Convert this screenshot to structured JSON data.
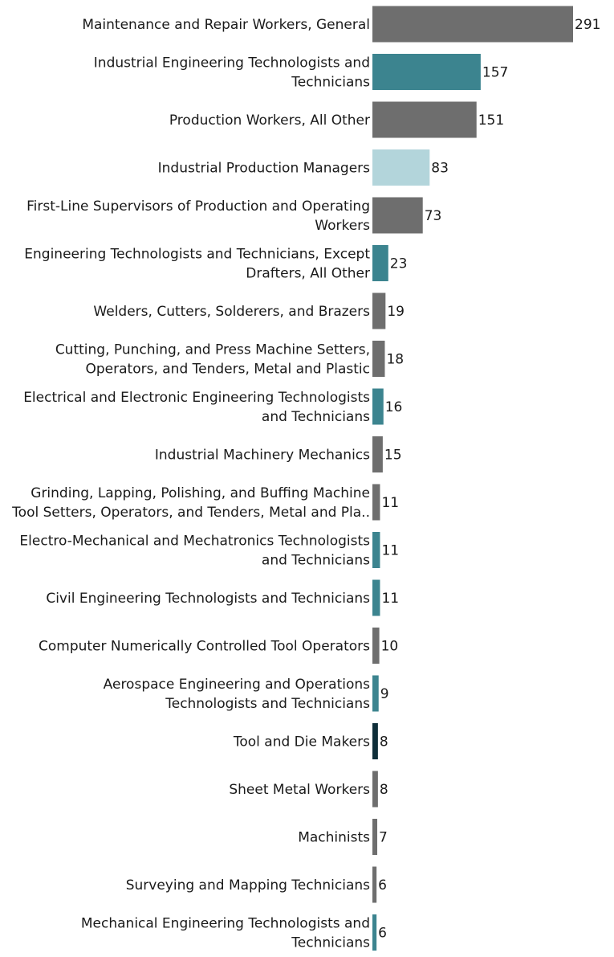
{
  "chart_data": {
    "type": "bar",
    "orientation": "horizontal",
    "title": "",
    "xlabel": "",
    "ylabel": "",
    "grid": false,
    "xlim": [
      0,
      291
    ],
    "categories": [
      [
        "Maintenance and Repair Workers, General"
      ],
      [
        "Industrial Engineering Technologists and",
        "Technicians"
      ],
      [
        "Production Workers, All Other"
      ],
      [
        "Industrial Production Managers"
      ],
      [
        "First-Line Supervisors of Production and Operating",
        "Workers"
      ],
      [
        "Engineering Technologists and Technicians, Except",
        "Drafters, All Other"
      ],
      [
        "Welders, Cutters, Solderers, and Brazers"
      ],
      [
        "Cutting, Punching, and Press Machine Setters,",
        "Operators, and Tenders, Metal and Plastic"
      ],
      [
        "Electrical and Electronic Engineering Technologists",
        "and Technicians"
      ],
      [
        "Industrial Machinery Mechanics"
      ],
      [
        "Grinding, Lapping, Polishing, and Buffing Machine",
        "Tool Setters, Operators, and Tenders, Metal and Pla.."
      ],
      [
        "Electro-Mechanical and Mechatronics Technologists",
        "and Technicians"
      ],
      [
        "Civil Engineering Technologists and Technicians"
      ],
      [
        "Computer Numerically Controlled Tool Operators"
      ],
      [
        "Aerospace Engineering and Operations",
        "Technologists and Technicians"
      ],
      [
        "Tool and Die Makers"
      ],
      [
        "Sheet Metal Workers"
      ],
      [
        "Machinists"
      ],
      [
        "Surveying and Mapping Technicians"
      ],
      [
        "Mechanical Engineering Technologists and",
        "Technicians"
      ]
    ],
    "values": [
      291,
      157,
      151,
      83,
      73,
      23,
      19,
      18,
      16,
      15,
      11,
      11,
      11,
      10,
      9,
      8,
      8,
      7,
      6,
      6
    ],
    "bar_colors": [
      "#6e6e6e",
      "#3c848f",
      "#6e6e6e",
      "#b3d5db",
      "#6e6e6e",
      "#3c848f",
      "#6e6e6e",
      "#6e6e6e",
      "#3c848f",
      "#6e6e6e",
      "#6e6e6e",
      "#3c848f",
      "#3c848f",
      "#6e6e6e",
      "#3c848f",
      "#0f2f3a",
      "#6e6e6e",
      "#6e6e6e",
      "#6e6e6e",
      "#3c848f"
    ]
  }
}
